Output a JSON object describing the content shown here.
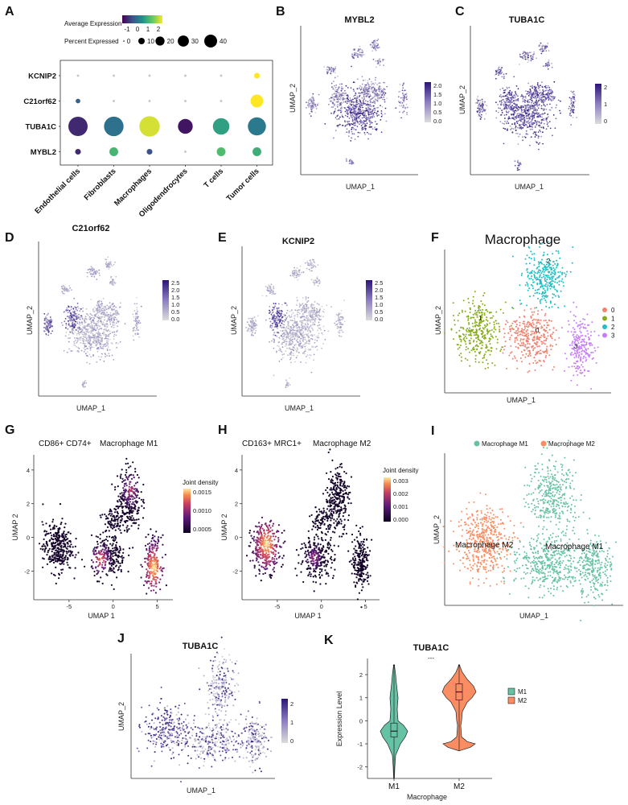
{
  "chart_data": [
    {
      "panel": "A",
      "type": "dotplot",
      "legend": {
        "expr_title": "Average Expression",
        "expr_ticks": [
          "-1",
          "0",
          "1",
          "2"
        ],
        "pct_title": "Percent Expressed",
        "pct_ticks": [
          "0",
          "10",
          "20",
          "30",
          "40"
        ],
        "pct_values": [
          0,
          10,
          20,
          30,
          40
        ]
      },
      "genes": [
        "KCNIP2",
        "C21orf62",
        "TUBA1C",
        "MYBL2"
      ],
      "cell_types": [
        "Endothelial cells",
        "Fibroblasts",
        "Macrophages",
        "Oligodendrocytes",
        "T cells",
        "Tumor cells"
      ],
      "avg_expression": [
        [
          -0.5,
          -0.5,
          -0.5,
          -0.5,
          -0.5,
          2.0
        ],
        [
          -0.2,
          -0.5,
          -0.5,
          -0.5,
          -0.5,
          2.0
        ],
        [
          -0.8,
          0.0,
          1.8,
          -1.0,
          0.6,
          0.1
        ],
        [
          -0.8,
          0.9,
          -0.4,
          -0.5,
          1.0,
          0.8
        ]
      ],
      "pct_expressed": [
        [
          0.5,
          0.5,
          0.5,
          0.5,
          0.5,
          3
        ],
        [
          2,
          0.5,
          0.5,
          0.5,
          0.5,
          15
        ],
        [
          34,
          35,
          38,
          20,
          25,
          30
        ],
        [
          3,
          7,
          3,
          0.5,
          7,
          7
        ]
      ]
    },
    {
      "panel": "B",
      "type": "scatter",
      "title": "MYBL2",
      "xlabel": "UMAP_1",
      "ylabel": "UMAP_2",
      "colorbar_ticks": [
        "2.0",
        "1.5",
        "1.0",
        "0.5",
        "0.0"
      ],
      "colorbar_range": [
        0,
        2.0
      ]
    },
    {
      "panel": "C",
      "type": "scatter",
      "title": "TUBA1C",
      "xlabel": "UMAP_1",
      "ylabel": "UMAP_2",
      "colorbar_ticks": [
        "2",
        "1",
        "0"
      ],
      "colorbar_range": [
        0,
        2.5
      ]
    },
    {
      "panel": "D",
      "type": "scatter",
      "title": "C21orf62",
      "xlabel": "UMAP_1",
      "ylabel": "UMAP_2",
      "colorbar_ticks": [
        "2.5",
        "2.0",
        "1.5",
        "1.0",
        "0.5",
        "0.0"
      ],
      "colorbar_range": [
        0,
        2.5
      ]
    },
    {
      "panel": "E",
      "type": "scatter",
      "title": "KCNIP2",
      "xlabel": "UMAP_1",
      "ylabel": "UMAP_2",
      "colorbar_ticks": [
        "2.5",
        "2.0",
        "1.5",
        "1.0",
        "0.5",
        "0.0"
      ],
      "colorbar_range": [
        0,
        2.5
      ]
    },
    {
      "panel": "F",
      "type": "scatter",
      "title": "Macrophage",
      "xlabel": "UMAP_1",
      "ylabel": "UMAP_2",
      "clusters": [
        {
          "name": "0",
          "color": "#f0826e"
        },
        {
          "name": "1",
          "color": "#86ad1c"
        },
        {
          "name": "2",
          "color": "#1fbfc4"
        },
        {
          "name": "3",
          "color": "#c77cff"
        }
      ]
    },
    {
      "panel": "G",
      "type": "scatter",
      "subtitle": "CD86+ CD74+",
      "title": "Macrophage M1",
      "xlabel": "UMAP 1",
      "ylabel": "UMAP 2",
      "xticks": [
        "-5",
        "0",
        "5"
      ],
      "xtick_values": [
        -5,
        0,
        5
      ],
      "yticks": [
        "4",
        "2",
        "0",
        "-2"
      ],
      "ytick_values": [
        4,
        2,
        0,
        -2
      ],
      "xlim": [
        -9,
        6.5
      ],
      "ylim": [
        -3.7,
        4.9
      ],
      "legend_title": "Joint density",
      "colorbar_ticks": [
        "0.0015",
        "0.0010",
        "0.0005"
      ]
    },
    {
      "panel": "H",
      "type": "scatter",
      "subtitle": "CD163+ MRC1+",
      "title": "Macrophage M2",
      "xlabel": "UMAP 1",
      "ylabel": "UMAP 2",
      "xticks": [
        "-5",
        "0",
        "5"
      ],
      "xtick_values": [
        -5,
        0,
        5
      ],
      "yticks": [
        "4",
        "2",
        "0",
        "-2"
      ],
      "ytick_values": [
        4,
        2,
        0,
        -2
      ],
      "xlim": [
        -9,
        6.5
      ],
      "ylim": [
        -3.7,
        4.9
      ],
      "legend_title": "Joint density",
      "colorbar_ticks": [
        "0.003",
        "0.002",
        "0.001",
        "0.000"
      ]
    },
    {
      "panel": "I",
      "type": "scatter",
      "xlabel": "UMAP_1",
      "ylabel": "UMAP_2",
      "groups": [
        {
          "name": "Macrophage M1",
          "color": "#66c2a5"
        },
        {
          "name": "Macrophage M2",
          "color": "#fc8d62"
        }
      ]
    },
    {
      "panel": "J",
      "type": "scatter",
      "title": "TUBA1C",
      "xlabel": "UMAP_1",
      "ylabel": "UMAP_2",
      "colorbar_ticks": [
        "2",
        "1",
        "0"
      ],
      "colorbar_range": [
        0,
        2.5
      ]
    },
    {
      "panel": "K",
      "type": "violin",
      "title": "TUBA1C",
      "significance": "---",
      "xlabel": "Macrophage",
      "ylabel": "Expression Level",
      "categories": [
        "M1",
        "M2"
      ],
      "colors": [
        "#66c2a5",
        "#fc8d62"
      ],
      "yticks": [
        "2",
        "1",
        "0",
        "-1",
        "-2"
      ],
      "ytick_values": [
        2,
        1,
        0,
        -1,
        -2
      ],
      "ylim": [
        -2.5,
        2.7
      ],
      "median": [
        -0.45,
        1.25
      ],
      "q1": [
        -0.7,
        0.9
      ],
      "q3": [
        -0.1,
        1.6
      ],
      "whisker_low": [
        -2.5,
        -1.3
      ],
      "whisker_high": [
        2.4,
        2.4
      ],
      "legend": [
        "M1",
        "M2"
      ]
    }
  ],
  "panel_labels": [
    "A",
    "B",
    "C",
    "D",
    "E",
    "F",
    "G",
    "H",
    "I",
    "J",
    "K"
  ]
}
